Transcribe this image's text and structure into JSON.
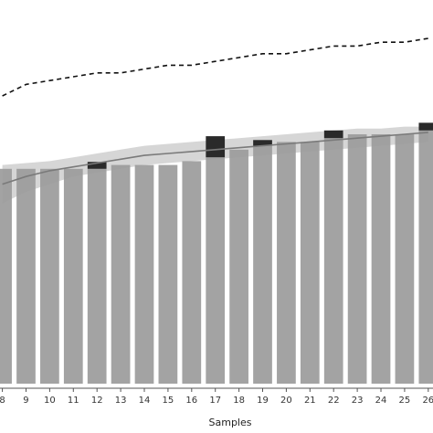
{
  "chart_data": {
    "type": "bar",
    "xlabel": "Samples",
    "categories": [
      "8",
      "9",
      "10",
      "11",
      "12",
      "13",
      "14",
      "15",
      "16",
      "17",
      "18",
      "19",
      "20",
      "21",
      "22",
      "23",
      "24",
      "25",
      "26"
    ],
    "visible_x_range": [
      7.9,
      26.2
    ],
    "ylim": [
      0,
      1
    ],
    "series": [
      {
        "role": "gray bars",
        "values": [
          0.56,
          0.56,
          0.56,
          0.56,
          0.56,
          0.57,
          0.57,
          0.57,
          0.58,
          0.59,
          0.61,
          0.62,
          0.63,
          0.63,
          0.64,
          0.65,
          0.65,
          0.65,
          0.66
        ]
      },
      {
        "role": "dark bar tops",
        "values": [
          0,
          0,
          0,
          0,
          0.018,
          0,
          0,
          0,
          0,
          0.055,
          0,
          0.015,
          0,
          0,
          0.02,
          0,
          0,
          0,
          0.02
        ]
      },
      {
        "role": "solid fitted curve",
        "values": [
          0.52,
          0.54,
          0.555,
          0.565,
          0.575,
          0.585,
          0.595,
          0.6,
          0.605,
          0.61,
          0.615,
          0.62,
          0.625,
          0.63,
          0.635,
          0.64,
          0.645,
          0.65,
          0.655
        ]
      },
      {
        "role": "dashed curve",
        "values": [
          0.75,
          0.78,
          0.79,
          0.8,
          0.81,
          0.81,
          0.82,
          0.83,
          0.83,
          0.84,
          0.85,
          0.86,
          0.86,
          0.87,
          0.88,
          0.88,
          0.89,
          0.89,
          0.9
        ]
      }
    ],
    "band": {
      "role": "light confidence band",
      "upper": [
        0.57,
        0.575,
        0.58,
        0.59,
        0.6,
        0.61,
        0.62,
        0.625,
        0.63,
        0.635,
        0.64,
        0.645,
        0.65,
        0.655,
        0.66,
        0.665,
        0.665,
        0.67,
        0.67
      ],
      "lower": [
        0.47,
        0.5,
        0.52,
        0.54,
        0.55,
        0.56,
        0.57,
        0.575,
        0.58,
        0.585,
        0.59,
        0.595,
        0.6,
        0.605,
        0.61,
        0.615,
        0.62,
        0.625,
        0.63
      ]
    },
    "colors": {
      "bar": "#9b9b9b",
      "bar_top": "#2a2a2a",
      "band": "#cfcfcf",
      "curve": "#7a7a7a",
      "dashed": "#111111",
      "axis": "#555555"
    },
    "grid": false,
    "legend": "none"
  }
}
